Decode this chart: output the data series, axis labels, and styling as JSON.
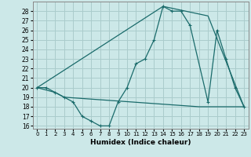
{
  "xlabel": "Humidex (Indice chaleur)",
  "bg_color": "#cce8e8",
  "grid_color": "#aacccc",
  "line_color": "#1a6b6b",
  "xlim": [
    -0.5,
    23.5
  ],
  "ylim": [
    15.7,
    29.0
  ],
  "yticks": [
    16,
    17,
    18,
    19,
    20,
    21,
    22,
    23,
    24,
    25,
    26,
    27,
    28
  ],
  "xticks": [
    0,
    1,
    2,
    3,
    4,
    5,
    6,
    7,
    8,
    9,
    10,
    11,
    12,
    13,
    14,
    15,
    16,
    17,
    18,
    19,
    20,
    21,
    22,
    23
  ],
  "line1_x": [
    0,
    1,
    2,
    3,
    4,
    5,
    6,
    7,
    8,
    9,
    10,
    11,
    12,
    13,
    14,
    15,
    16,
    17,
    19,
    20,
    21,
    22,
    23
  ],
  "line1_y": [
    20,
    20,
    19.5,
    19,
    18.5,
    17,
    16.5,
    16,
    16,
    18.5,
    20,
    22.5,
    23,
    25,
    28.5,
    28,
    28,
    26.5,
    18.5,
    26,
    23,
    20,
    18
  ],
  "line2_x": [
    0,
    2,
    3,
    18,
    19,
    21,
    22,
    23
  ],
  "line2_y": [
    20,
    19.5,
    19,
    18,
    18,
    18,
    18,
    18
  ],
  "line3_x": [
    0,
    14,
    19,
    23
  ],
  "line3_y": [
    20,
    28.5,
    27.5,
    18
  ]
}
